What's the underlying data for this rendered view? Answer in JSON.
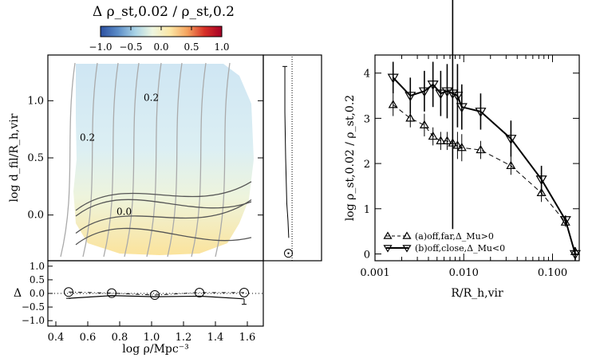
{
  "colorbar": {
    "title": "Δ ρ_st,0.02 / ρ_st,0.2",
    "min": -1.0,
    "max": 1.0,
    "ticks": [
      -1.0,
      -0.5,
      0.0,
      0.5,
      1.0
    ],
    "tick_labels": [
      "−1.0",
      "−0.5",
      "0.0",
      "0.5",
      "1.0"
    ],
    "colormap": [
      "#2b4fa0",
      "#5b8cc7",
      "#a9d3e6",
      "#eef6e0",
      "#fbe7a6",
      "#f4a35e",
      "#d73027",
      "#a50026"
    ]
  },
  "chart_data": [
    {
      "id": "map",
      "type": "heatmap",
      "xlabel": "log ρ/Mpc⁻³",
      "ylabel": "log d_fil/R_h,vir",
      "xlim": [
        0.35,
        1.7
      ],
      "ylim": [
        -0.4,
        1.4
      ],
      "yticks": [
        0.0,
        0.5,
        1.0
      ],
      "ytick_labels": [
        "0.0",
        "0.5",
        "1.0"
      ],
      "contour_labels": [
        {
          "text": "0.2",
          "x": 0.95,
          "y": 1.0
        },
        {
          "text": "0.2",
          "x": 0.55,
          "y": 0.65
        },
        {
          "text": "0.0",
          "x": 0.78,
          "y": 0.0
        }
      ],
      "field_description": "values near 0.0–0.2 top left (light blue), ~0 middle, ~0.4 bottom (yellow)"
    },
    {
      "id": "bottom",
      "type": "line",
      "xlabel": "log ρ/Mpc⁻³",
      "ylabel": "Δ",
      "xlim": [
        0.35,
        1.7
      ],
      "ylim": [
        -1.2,
        1.2
      ],
      "xticks": [
        0.4,
        0.6,
        0.8,
        1.0,
        1.2,
        1.4,
        1.6
      ],
      "xtick_labels": [
        "0.4",
        "0.6",
        "0.8",
        "1.0",
        "1.2",
        "1.4",
        "1.6"
      ],
      "yticks": [
        -1.0,
        -0.5,
        0.0,
        0.5,
        1.0
      ],
      "ytick_labels": [
        "−1.0",
        "−0.5",
        "0.0",
        "0.5",
        "1.0"
      ],
      "series": [
        {
          "style": "circles-dashdot",
          "x": [
            0.48,
            0.75,
            1.02,
            1.3,
            1.58
          ],
          "y": [
            0.05,
            0.01,
            -0.06,
            0.03,
            0.03
          ]
        },
        {
          "style": "solid-errorbars",
          "x": [
            0.48,
            0.75,
            1.02,
            1.3,
            1.58
          ],
          "y": [
            -0.18,
            -0.08,
            -0.12,
            -0.1,
            -0.2
          ],
          "yerr_low": [
            0.0,
            0.0,
            0.0,
            0.0,
            0.2
          ]
        }
      ]
    },
    {
      "id": "side",
      "type": "line",
      "xlim": [
        -0.5,
        1.0
      ],
      "ylim": [
        -0.4,
        1.4
      ],
      "series": [
        {
          "style": "solid",
          "x": [
            0.22,
            0.22,
            0.24,
            0.27,
            0.3,
            0.32
          ],
          "y": [
            1.3,
            0.9,
            0.5,
            0.1,
            -0.05,
            -0.2
          ]
        },
        {
          "style": "dotted-vline",
          "x": [
            0.2,
            0.2
          ],
          "y": [
            -0.4,
            1.4
          ]
        },
        {
          "style": "circle",
          "x": [
            0.25
          ],
          "y": [
            -0.3
          ]
        }
      ]
    },
    {
      "id": "right",
      "type": "line",
      "xlabel": "R/R_h,vir",
      "ylabel": "log ρ_st,0.02 / ρ_st,0.2",
      "xscale": "log",
      "xlim": [
        0.001,
        0.2
      ],
      "ylim": [
        -0.15,
        4.4
      ],
      "xticks": [
        0.001,
        0.01,
        0.1
      ],
      "xtick_labels": [
        "0.001",
        "0.010",
        "0.100"
      ],
      "yticks": [
        0,
        1,
        2,
        3,
        4
      ],
      "ytick_labels": [
        "0",
        "1",
        "2",
        "3",
        "4"
      ],
      "legend": [
        {
          "symbol": "triangle-up",
          "line": "dashed",
          "text": "(a)off,far,Δ_Mu>0"
        },
        {
          "symbol": "triangle-down",
          "line": "solid",
          "text": "(b)off,close,Δ_Mu<0"
        }
      ],
      "legend_position": "bottom-left",
      "series": [
        {
          "name": "(a)off,far,Δ_Mu>0",
          "marker": "triangle-up",
          "line": "dashed",
          "x": [
            0.0016,
            0.0025,
            0.0036,
            0.0045,
            0.0055,
            0.0065,
            0.0075,
            0.0085,
            0.0095,
            0.0155,
            0.034,
            0.075,
            0.14,
            0.18
          ],
          "y": [
            3.3,
            3.0,
            2.85,
            2.6,
            2.5,
            2.5,
            2.45,
            2.4,
            2.35,
            2.3,
            1.95,
            1.35,
            0.7,
            0.05
          ],
          "yerr": [
            0.25,
            0.2,
            0.25,
            0.2,
            0.2,
            0.2,
            0.3,
            0.3,
            0.3,
            0.2,
            0.2,
            0.2,
            0.1,
            0.1
          ]
        },
        {
          "name": "(b)off,close,Δ_Mu<0",
          "marker": "triangle-down",
          "line": "solid",
          "x": [
            0.0016,
            0.0025,
            0.0036,
            0.0045,
            0.0055,
            0.0065,
            0.0075,
            0.0085,
            0.0095,
            0.0155,
            0.034,
            0.075,
            0.14,
            0.18
          ],
          "y": [
            3.9,
            3.5,
            3.6,
            3.75,
            3.55,
            3.6,
            3.55,
            3.5,
            3.25,
            3.15,
            2.55,
            1.65,
            0.75,
            0.0
          ],
          "yerr": [
            0.35,
            0.4,
            0.45,
            0.5,
            0.5,
            0.6,
            3.0,
            0.7,
            0.5,
            0.4,
            0.4,
            0.3,
            0.1,
            0.15
          ]
        }
      ]
    }
  ]
}
